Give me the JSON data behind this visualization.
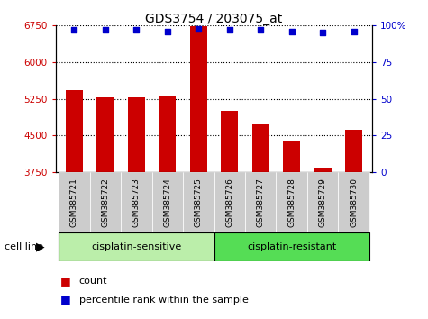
{
  "title": "GDS3754 / 203075_at",
  "samples": [
    "GSM385721",
    "GSM385722",
    "GSM385723",
    "GSM385724",
    "GSM385725",
    "GSM385726",
    "GSM385727",
    "GSM385728",
    "GSM385729",
    "GSM385730"
  ],
  "counts": [
    5430,
    5290,
    5280,
    5305,
    6730,
    5000,
    4730,
    4390,
    3840,
    4620
  ],
  "percentile_ranks": [
    97,
    97,
    97,
    96,
    98,
    97,
    97,
    96,
    95,
    96
  ],
  "ylim_left": [
    3750,
    6750
  ],
  "ylim_right": [
    0,
    100
  ],
  "yticks_left": [
    3750,
    4500,
    5250,
    6000,
    6750
  ],
  "yticks_right": [
    0,
    25,
    50,
    75,
    100
  ],
  "grid_values": [
    4500,
    5250,
    6000,
    6750
  ],
  "bar_color": "#cc0000",
  "dot_color": "#0000cc",
  "group1_label": "cisplatin-sensitive",
  "group2_label": "cisplatin-resistant",
  "group1_count": 5,
  "group2_count": 5,
  "group1_bg": "#bbeeaa",
  "group2_bg": "#55dd55",
  "sample_label_bg": "#cccccc",
  "cell_line_label": "cell line",
  "legend_count_label": "count",
  "legend_pct_label": "percentile rank within the sample",
  "bar_width": 0.55
}
